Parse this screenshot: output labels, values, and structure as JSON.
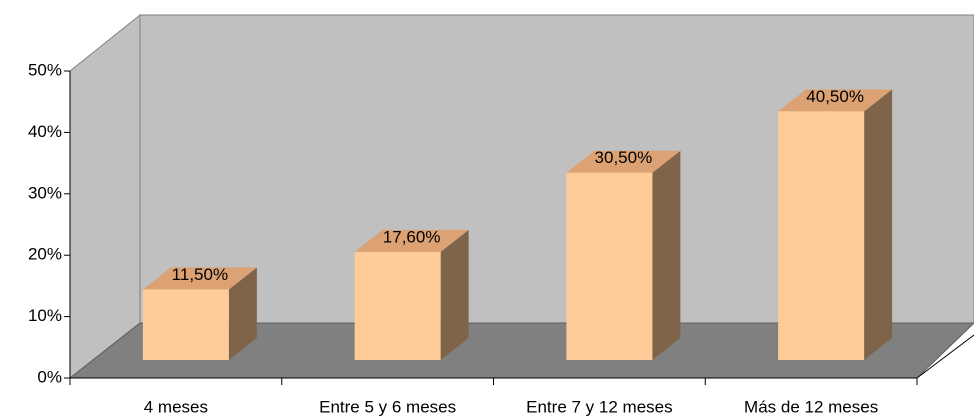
{
  "chart_data": {
    "type": "bar3d",
    "categories": [
      "4 meses",
      "Entre 5 y 6 meses",
      "Entre 7 y 12 meses",
      "Más de 12 meses"
    ],
    "values": [
      11.5,
      17.6,
      30.5,
      40.5
    ],
    "value_labels": [
      "11,50%",
      "17,60%",
      "30,50%",
      "40,50%"
    ],
    "color": "#ffcc99",
    "ylim": [
      0,
      50
    ],
    "yticks": [
      {
        "value": 0,
        "label": "0%"
      },
      {
        "value": 10,
        "label": "10%"
      },
      {
        "value": 20,
        "label": "20%"
      },
      {
        "value": 30,
        "label": "30%"
      },
      {
        "value": 40,
        "label": "40%"
      },
      {
        "value": 50,
        "label": "50%"
      }
    ]
  }
}
